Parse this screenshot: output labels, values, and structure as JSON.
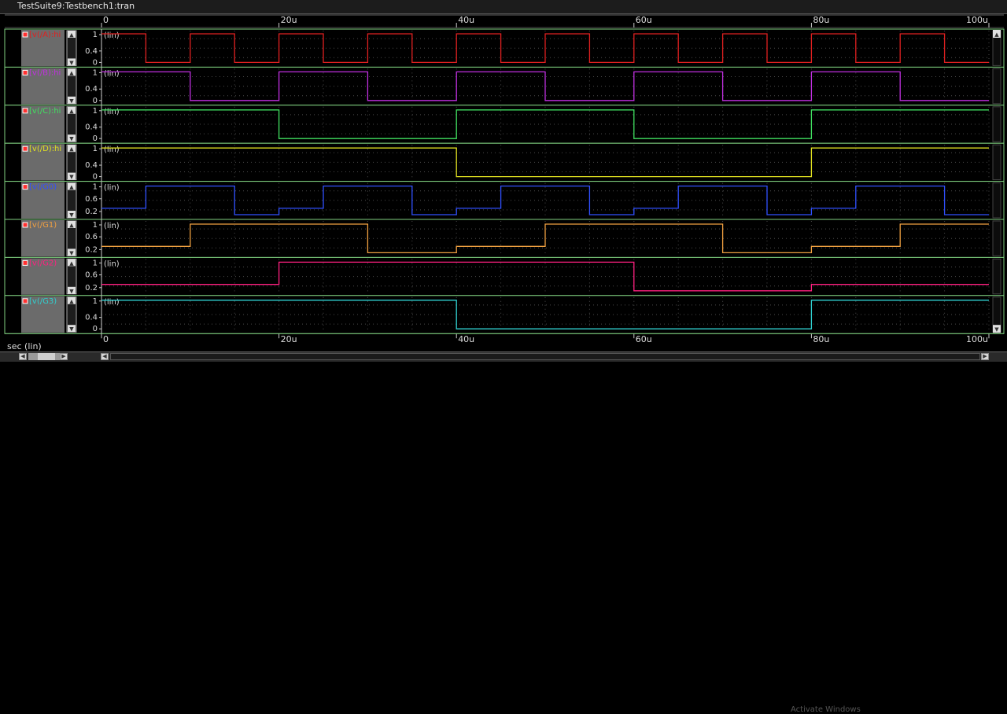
{
  "window": {
    "title": "TestSuite9:Testbench1:tran"
  },
  "footer": {
    "watermark": "Activate Windows"
  },
  "chart_data": {
    "type": "line",
    "x_unit_label": "sec (lin)",
    "x_range": [
      0,
      100
    ],
    "x_ticks": [
      0,
      20,
      40,
      60,
      80,
      100
    ],
    "x_tick_labels": [
      "0",
      "20u",
      "40u",
      "60u",
      "80u",
      "100u"
    ],
    "y_scale_label": "(lin)",
    "grid": true,
    "colors": {
      "background": "#000000",
      "grid": "#4a4a4a",
      "strip_border": "#7fd07f",
      "A": "#e02020",
      "B": "#c030e0",
      "C": "#40e060",
      "D": "#e0e020",
      "G0": "#3050ff",
      "G1": "#f0a040",
      "G2": "#ff2080",
      "G3": "#30d0d0"
    },
    "traces": [
      {
        "key": "A",
        "name": "v(/A):hi",
        "color": "A",
        "y_ticks": [
          "1",
          "0.4",
          "0"
        ],
        "low": 0,
        "high": 1,
        "x": [
          0,
          5,
          5,
          10,
          10,
          15,
          15,
          20,
          20,
          25,
          25,
          30,
          30,
          35,
          35,
          40,
          40,
          45,
          45,
          50,
          50,
          55,
          55,
          60,
          60,
          65,
          65,
          70,
          70,
          75,
          75,
          80,
          80,
          85,
          85,
          90,
          90,
          95,
          95,
          100
        ],
        "y": [
          1,
          1,
          0,
          0,
          1,
          1,
          0,
          0,
          1,
          1,
          0,
          0,
          1,
          1,
          0,
          0,
          1,
          1,
          0,
          0,
          1,
          1,
          0,
          0,
          1,
          1,
          0,
          0,
          1,
          1,
          0,
          0,
          1,
          1,
          0,
          0,
          1,
          1,
          0,
          0
        ]
      },
      {
        "key": "B",
        "name": "v(/B):hi",
        "color": "B",
        "y_ticks": [
          "1",
          "0.4",
          "0"
        ],
        "low": 0,
        "high": 1,
        "x": [
          0,
          10,
          10,
          20,
          20,
          30,
          30,
          40,
          40,
          50,
          50,
          60,
          60,
          70,
          70,
          80,
          80,
          90,
          90,
          100
        ],
        "y": [
          1,
          1,
          0,
          0,
          1,
          1,
          0,
          0,
          1,
          1,
          0,
          0,
          1,
          1,
          0,
          0,
          1,
          1,
          0,
          0
        ]
      },
      {
        "key": "C",
        "name": "v(/C):hi",
        "color": "C",
        "y_ticks": [
          "1",
          "0.4",
          "0"
        ],
        "low": 0,
        "high": 1,
        "x": [
          0,
          20,
          20,
          40,
          40,
          60,
          60,
          80,
          80,
          100
        ],
        "y": [
          1,
          1,
          0,
          0,
          1,
          1,
          0,
          0,
          1,
          1
        ]
      },
      {
        "key": "D",
        "name": "v(/D):hi",
        "color": "D",
        "y_ticks": [
          "1",
          "0.4",
          "0"
        ],
        "low": 0,
        "high": 1,
        "x": [
          0,
          40,
          40,
          80,
          80,
          100
        ],
        "y": [
          1,
          1,
          0,
          0,
          1,
          1
        ]
      },
      {
        "key": "G0",
        "name": "v(/G0)",
        "color": "G0",
        "y_ticks": [
          "1",
          "0.6",
          "0.2"
        ],
        "low": 0.1,
        "high": 1.0,
        "x": [
          0,
          5,
          5,
          10,
          10,
          15,
          15,
          20,
          20,
          25,
          25,
          30,
          30,
          35,
          35,
          40,
          40,
          45,
          45,
          50,
          50,
          55,
          55,
          60,
          60,
          65,
          65,
          70,
          70,
          75,
          75,
          80,
          80,
          85,
          85,
          90,
          90,
          95,
          95,
          100
        ],
        "y": [
          0.3,
          0.3,
          1,
          1,
          1,
          1,
          0.1,
          0.1,
          0.3,
          0.3,
          1,
          1,
          1,
          1,
          0.1,
          0.1,
          0.3,
          0.3,
          1,
          1,
          1,
          1,
          0.1,
          0.1,
          0.3,
          0.3,
          1,
          1,
          1,
          1,
          0.1,
          0.1,
          0.3,
          0.3,
          1,
          1,
          1,
          1,
          0.1,
          0.1
        ]
      },
      {
        "key": "G1",
        "name": "v(/G1)",
        "color": "G1",
        "y_ticks": [
          "1",
          "0.6",
          "0.2"
        ],
        "low": 0.1,
        "high": 1.0,
        "x": [
          0,
          10,
          10,
          20,
          20,
          30,
          30,
          40,
          40,
          50,
          50,
          60,
          60,
          70,
          70,
          80,
          80,
          90,
          90,
          100
        ],
        "y": [
          0.3,
          0.3,
          1,
          1,
          1,
          1,
          0.1,
          0.1,
          0.3,
          0.3,
          1,
          1,
          1,
          1,
          0.1,
          0.1,
          0.3,
          0.3,
          1,
          1
        ]
      },
      {
        "key": "G2",
        "name": "v(/G2)",
        "color": "G2",
        "y_ticks": [
          "1",
          "0.6",
          "0.2"
        ],
        "low": 0.1,
        "high": 1.0,
        "x": [
          0,
          20,
          20,
          40,
          40,
          60,
          60,
          80,
          80,
          100
        ],
        "y": [
          0.3,
          0.3,
          1,
          1,
          1,
          1,
          0.1,
          0.1,
          0.3,
          0.3
        ]
      },
      {
        "key": "G3",
        "name": "v(/G3)",
        "color": "G3",
        "y_ticks": [
          "1",
          "0.4",
          "0"
        ],
        "low": 0,
        "high": 1,
        "x": [
          0,
          40,
          40,
          80,
          80,
          100
        ],
        "y": [
          1,
          1,
          0,
          0,
          1,
          1
        ]
      }
    ]
  }
}
